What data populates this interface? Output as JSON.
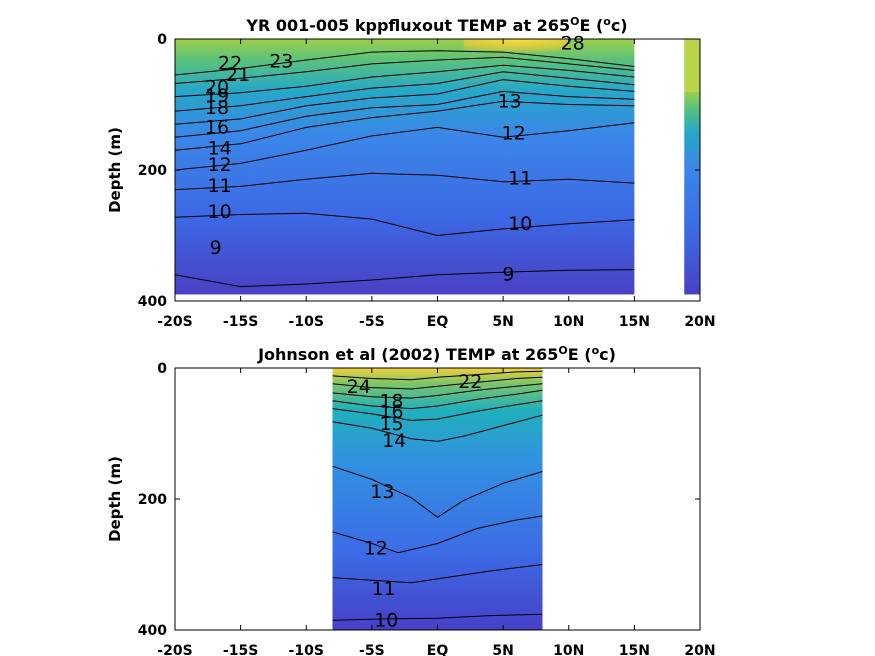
{
  "chart_data": [
    {
      "type": "heatmap",
      "title_parts": [
        "YR 001-005 kppfluxout TEMP at 265",
        "O",
        "E (",
        "o",
        "c)"
      ],
      "ylabel": "Depth (m)",
      "xlim": [
        -20,
        20
      ],
      "ylim": [
        0,
        400
      ],
      "y_reversed": true,
      "x_ticks": [
        -20,
        -15,
        -10,
        -5,
        0,
        5,
        10,
        15,
        20
      ],
      "x_tick_labels": [
        "-20S",
        "-15S",
        "-10S",
        "-5S",
        "EQ",
        "5N",
        "10N",
        "15N",
        "20N"
      ],
      "y_ticks": [
        0,
        200,
        400
      ],
      "y_tick_labels": [
        "0",
        "200",
        "400"
      ],
      "data_extent": {
        "lat": [
          -20,
          15
        ],
        "depth_max": 390
      },
      "contours": [
        {
          "level": 9,
          "points": [
            [
              -20,
              360
            ],
            [
              -15,
              378
            ],
            [
              -10,
              374
            ],
            [
              -5,
              368
            ],
            [
              0,
              360
            ],
            [
              5,
              356
            ],
            [
              10,
              353
            ],
            [
              15,
              352
            ]
          ]
        },
        {
          "level": 10,
          "points": [
            [
              -20,
              272
            ],
            [
              -15,
              268
            ],
            [
              -10,
              266
            ],
            [
              -5,
              275
            ],
            [
              0,
              300
            ],
            [
              5,
              290
            ],
            [
              10,
              282
            ],
            [
              15,
              276
            ]
          ]
        },
        {
          "level": 11,
          "points": [
            [
              -20,
              230
            ],
            [
              -15,
              225
            ],
            [
              -10,
              214
            ],
            [
              -5,
              205
            ],
            [
              0,
              208
            ],
            [
              5,
              218
            ],
            [
              10,
              214
            ],
            [
              15,
              220
            ]
          ]
        },
        {
          "level": 12,
          "points": [
            [
              -20,
              200
            ],
            [
              -15,
              190
            ],
            [
              -10,
              170
            ],
            [
              -5,
              148
            ],
            [
              0,
              135
            ],
            [
              5,
              150
            ],
            [
              10,
              140
            ],
            [
              15,
              128
            ]
          ]
        },
        {
          "level": 13,
          "points": [
            [
              -20,
              170
            ],
            [
              -15,
              160
            ],
            [
              -10,
              135
            ],
            [
              -5,
              120
            ],
            [
              0,
              110
            ],
            [
              5,
              95
            ],
            [
              10,
              100
            ],
            [
              15,
              102
            ]
          ]
        },
        {
          "level": 14,
          "points": [
            [
              -20,
              150
            ],
            [
              -15,
              140
            ],
            [
              -10,
              118
            ],
            [
              -5,
              105
            ],
            [
              0,
              100
            ],
            [
              5,
              80
            ],
            [
              10,
              88
            ],
            [
              15,
              92
            ]
          ]
        },
        {
          "level": 16,
          "points": [
            [
              -20,
              130
            ],
            [
              -15,
              122
            ],
            [
              -10,
              102
            ],
            [
              -5,
              90
            ],
            [
              0,
              84
            ],
            [
              5,
              62
            ],
            [
              10,
              72
            ],
            [
              15,
              80
            ]
          ]
        },
        {
          "level": 18,
          "points": [
            [
              -20,
              110
            ],
            [
              -15,
              102
            ],
            [
              -10,
              88
            ],
            [
              -5,
              75
            ],
            [
              0,
              68
            ],
            [
              5,
              50
            ],
            [
              10,
              60
            ],
            [
              15,
              70
            ]
          ]
        },
        {
          "level": 20,
          "points": [
            [
              -20,
              88
            ],
            [
              -15,
              82
            ],
            [
              -10,
              72
            ],
            [
              -5,
              58
            ],
            [
              0,
              50
            ],
            [
              5,
              40
            ],
            [
              10,
              48
            ],
            [
              15,
              58
            ]
          ]
        },
        {
          "level": 22,
          "points": [
            [
              -20,
              68
            ],
            [
              -15,
              60
            ],
            [
              -10,
              50
            ],
            [
              -5,
              38
            ],
            [
              0,
              32
            ],
            [
              5,
              28
            ],
            [
              10,
              38
            ],
            [
              15,
              48
            ]
          ]
        },
        {
          "level": 23,
          "points": [
            [
              -20,
              55
            ],
            [
              -15,
              45
            ],
            [
              -10,
              32
            ],
            [
              -5,
              20
            ],
            [
              0,
              18
            ],
            [
              5,
              20
            ],
            [
              10,
              30
            ],
            [
              15,
              42
            ]
          ]
        }
      ],
      "contour_labels": [
        {
          "text": "9",
          "lat": -16.9,
          "depth": 320
        },
        {
          "text": "9",
          "lat": 5.4,
          "depth": 360
        },
        {
          "text": "10",
          "lat": -16.6,
          "depth": 265
        },
        {
          "text": "10",
          "lat": 6.3,
          "depth": 283
        },
        {
          "text": "11",
          "lat": -16.6,
          "depth": 225
        },
        {
          "text": "11",
          "lat": 6.3,
          "depth": 214
        },
        {
          "text": "12",
          "lat": -16.6,
          "depth": 193
        },
        {
          "text": "12",
          "lat": 5.8,
          "depth": 145
        },
        {
          "text": "13",
          "lat": 5.5,
          "depth": 96
        },
        {
          "text": "14",
          "lat": -16.6,
          "depth": 168
        },
        {
          "text": "16",
          "lat": -16.8,
          "depth": 136
        },
        {
          "text": "18",
          "lat": -16.8,
          "depth": 106
        },
        {
          "text": "19",
          "lat": -16.8,
          "depth": 88
        },
        {
          "text": "20",
          "lat": -16.8,
          "depth": 75
        },
        {
          "text": "21",
          "lat": -15.2,
          "depth": 56
        },
        {
          "text": "22",
          "lat": -15.8,
          "depth": 38
        },
        {
          "text": "23",
          "lat": -11.9,
          "depth": 35
        },
        {
          "text": "28",
          "lat": 10.3,
          "depth": 8
        }
      ]
    },
    {
      "type": "heatmap",
      "title_parts": [
        "Johnson et al (2002) TEMP at 265",
        "O",
        "E (",
        "o",
        "c)"
      ],
      "ylabel": "Depth (m)",
      "xlim": [
        -20,
        20
      ],
      "ylim": [
        0,
        400
      ],
      "y_reversed": true,
      "x_ticks": [
        -20,
        -15,
        -10,
        -5,
        0,
        5,
        10,
        15,
        20
      ],
      "x_tick_labels": [
        "-20S",
        "-15S",
        "-10S",
        "-5S",
        "EQ",
        "5N",
        "10N",
        "15N",
        "20N"
      ],
      "y_ticks": [
        0,
        200,
        400
      ],
      "y_tick_labels": [
        "0",
        "200",
        "400"
      ],
      "data_extent": {
        "lat": [
          -8,
          8
        ],
        "depth_max": 400
      },
      "contours": [
        {
          "level": 10,
          "points": [
            [
              -8,
              385
            ],
            [
              -4,
              383
            ],
            [
              0,
              382
            ],
            [
              4,
              378
            ],
            [
              8,
              376
            ]
          ]
        },
        {
          "level": 11,
          "points": [
            [
              -8,
              320
            ],
            [
              -5,
              324
            ],
            [
              -2,
              328
            ],
            [
              0,
              322
            ],
            [
              4,
              310
            ],
            [
              8,
              300
            ]
          ]
        },
        {
          "level": 12,
          "points": [
            [
              -8,
              250
            ],
            [
              -5,
              268
            ],
            [
              -3,
              282
            ],
            [
              0,
              268
            ],
            [
              3,
              245
            ],
            [
              6,
              232
            ],
            [
              8,
              226
            ]
          ]
        },
        {
          "level": 13,
          "points": [
            [
              -8,
              150
            ],
            [
              -5,
              170
            ],
            [
              -2,
              198
            ],
            [
              0,
              228
            ],
            [
              2,
              202
            ],
            [
              5,
              176
            ],
            [
              8,
              158
            ]
          ]
        },
        {
          "level": 14,
          "points": [
            [
              -8,
              82
            ],
            [
              -5,
              92
            ],
            [
              -2,
              108
            ],
            [
              0,
              112
            ],
            [
              2,
              104
            ],
            [
              5,
              88
            ],
            [
              8,
              72
            ]
          ]
        },
        {
          "level": 16,
          "points": [
            [
              -8,
              62
            ],
            [
              -5,
              70
            ],
            [
              -2,
              80
            ],
            [
              0,
              78
            ],
            [
              3,
              66
            ],
            [
              6,
              56
            ],
            [
              8,
              50
            ]
          ]
        },
        {
          "level": 18,
          "points": [
            [
              -8,
              50
            ],
            [
              -5,
              58
            ],
            [
              -2,
              62
            ],
            [
              0,
              58
            ],
            [
              3,
              48
            ],
            [
              6,
              40
            ],
            [
              8,
              34
            ]
          ]
        },
        {
          "level": 20,
          "points": [
            [
              -8,
              38
            ],
            [
              -5,
              44
            ],
            [
              -2,
              46
            ],
            [
              0,
              42
            ],
            [
              3,
              34
            ],
            [
              6,
              28
            ],
            [
              8,
              24
            ]
          ]
        },
        {
          "level": 22,
          "points": [
            [
              -8,
              24
            ],
            [
              -5,
              30
            ],
            [
              -2,
              32
            ],
            [
              0,
              28
            ],
            [
              3,
              22
            ],
            [
              6,
              16
            ],
            [
              8,
              14
            ]
          ]
        },
        {
          "level": 24,
          "points": [
            [
              -8,
              12
            ],
            [
              -5,
              16
            ],
            [
              -2,
              18
            ],
            [
              0,
              14
            ],
            [
              3,
              10
            ],
            [
              6,
              6
            ],
            [
              8,
              5
            ]
          ]
        }
      ],
      "contour_labels": [
        {
          "text": "10",
          "lat": -3.9,
          "depth": 386
        },
        {
          "text": "11",
          "lat": -4.1,
          "depth": 338
        },
        {
          "text": "12",
          "lat": -4.7,
          "depth": 276
        },
        {
          "text": "13",
          "lat": -4.2,
          "depth": 190
        },
        {
          "text": "14",
          "lat": -3.3,
          "depth": 112
        },
        {
          "text": "15",
          "lat": -3.5,
          "depth": 86
        },
        {
          "text": "16",
          "lat": -3.5,
          "depth": 68
        },
        {
          "text": "18",
          "lat": -3.5,
          "depth": 52
        },
        {
          "text": "24",
          "lat": -6.0,
          "depth": 30
        },
        {
          "text": "22",
          "lat": 2.5,
          "depth": 22
        }
      ]
    }
  ]
}
